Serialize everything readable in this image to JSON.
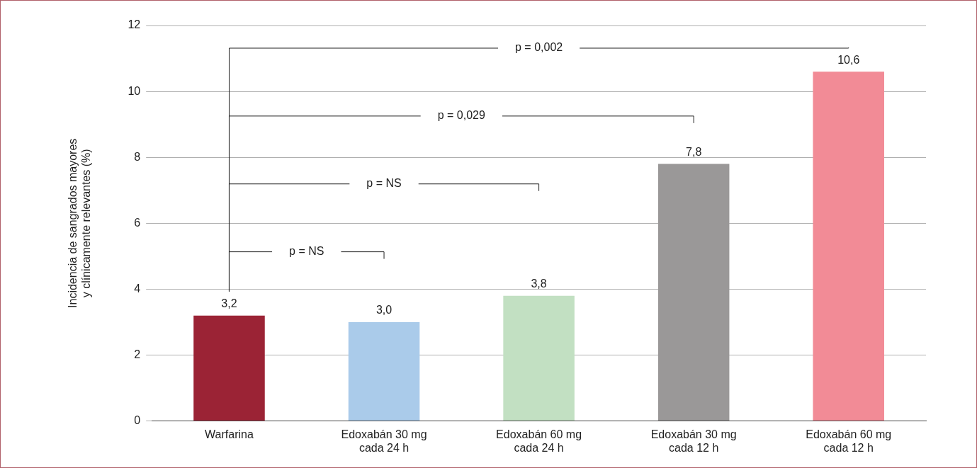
{
  "chart_data": {
    "type": "bar",
    "ylabel": "Incidencia de sangrados mayores\ny clínicamente relevantes (%)",
    "categories": [
      "Warfarina",
      "Edoxabán 30 mg\ncada 24 h",
      "Edoxabán 60 mg\ncada 24 h",
      "Edoxabán 30 mg\ncada 12 h",
      "Edoxabán 60 mg\ncada 12 h"
    ],
    "values": [
      3.2,
      3.0,
      3.8,
      7.8,
      10.6
    ],
    "value_labels": [
      "3,2",
      "3,0",
      "3,8",
      "7,8",
      "10,6"
    ],
    "colors": [
      "#9b2335",
      "#aacbea",
      "#c2e0c2",
      "#9a9898",
      "#f28b96"
    ],
    "ylim": [
      0,
      12
    ],
    "yticks": [
      0,
      2,
      4,
      6,
      8,
      10,
      12
    ],
    "grid": "y",
    "legend": false,
    "annotations": [
      "p = NS",
      "p = NS",
      "p = 0,029",
      "p = 0,002"
    ]
  }
}
